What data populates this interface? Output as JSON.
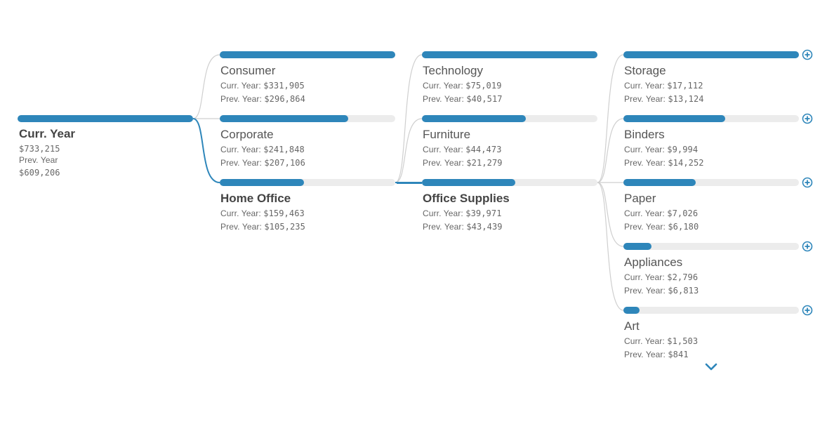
{
  "colors": {
    "accent": "#2e86ba",
    "track": "#ececec",
    "link": "#cfcfcf"
  },
  "root": {
    "title": "Curr. Year",
    "curr_value": "$733,215",
    "prev_label": "Prev. Year",
    "prev_value": "$609,206",
    "fill_fraction": 1.0
  },
  "levels": [
    {
      "field": "Segment",
      "selected_index": 2,
      "nodes": [
        {
          "label": "Consumer",
          "curr_label": "Curr. Year:",
          "curr": "$331,905",
          "prev_label": "Prev. Year:",
          "prev": "$296,864",
          "fill_fraction": 1.0
        },
        {
          "label": "Corporate",
          "curr_label": "Curr. Year:",
          "curr": "$241,848",
          "prev_label": "Prev. Year:",
          "prev": "$207,106",
          "fill_fraction": 0.73
        },
        {
          "label": "Home Office",
          "curr_label": "Curr. Year:",
          "curr": "$159,463",
          "prev_label": "Prev. Year:",
          "prev": "$105,235",
          "fill_fraction": 0.48
        }
      ]
    },
    {
      "field": "Category",
      "selected_index": 2,
      "nodes": [
        {
          "label": "Technology",
          "curr_label": "Curr. Year:",
          "curr": "$75,019",
          "prev_label": "Prev. Year:",
          "prev": "$40,517",
          "fill_fraction": 1.0
        },
        {
          "label": "Furniture",
          "curr_label": "Curr. Year:",
          "curr": "$44,473",
          "prev_label": "Prev. Year:",
          "prev": "$21,279",
          "fill_fraction": 0.59
        },
        {
          "label": "Office Supplies",
          "curr_label": "Curr. Year:",
          "curr": "$39,971",
          "prev_label": "Prev. Year:",
          "prev": "$43,439",
          "fill_fraction": 0.53
        }
      ]
    },
    {
      "field": "Sub-Category",
      "selected_index": -1,
      "expandable": true,
      "nodes": [
        {
          "label": "Storage",
          "curr_label": "Curr. Year:",
          "curr": "$17,112",
          "prev_label": "Prev. Year:",
          "prev": "$13,124",
          "fill_fraction": 1.0
        },
        {
          "label": "Binders",
          "curr_label": "Curr. Year:",
          "curr": "$9,994",
          "prev_label": "Prev. Year:",
          "prev": "$14,252",
          "fill_fraction": 0.58
        },
        {
          "label": "Paper",
          "curr_label": "Curr. Year:",
          "curr": "$7,026",
          "prev_label": "Prev. Year:",
          "prev": "$6,180",
          "fill_fraction": 0.41
        },
        {
          "label": "Appliances",
          "curr_label": "Curr. Year:",
          "curr": "$2,796",
          "prev_label": "Prev. Year:",
          "prev": "$6,813",
          "fill_fraction": 0.16
        },
        {
          "label": "Art",
          "curr_label": "Curr. Year:",
          "curr": "$1,503",
          "prev_label": "Prev. Year:",
          "prev": "$841",
          "fill_fraction": 0.09
        }
      ]
    }
  ],
  "show_more_icon": "chevron-down-icon",
  "expand_icon": "plus-circle-icon"
}
